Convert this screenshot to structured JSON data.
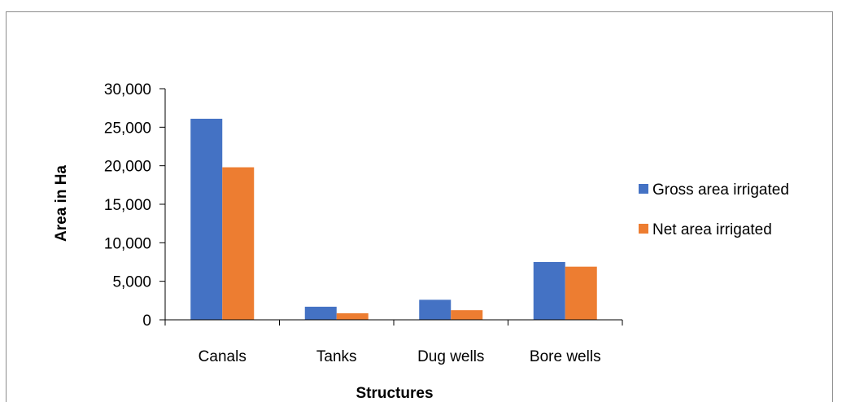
{
  "chart_data": {
    "type": "bar",
    "categories": [
      "Canals",
      "Tanks",
      "Dug wells",
      "Bore wells"
    ],
    "series": [
      {
        "name": "Gross area irrigated",
        "color": "#4472c4",
        "values": [
          26100,
          1700,
          2600,
          7500
        ]
      },
      {
        "name": "Net area irrigated",
        "color": "#ed7d31",
        "values": [
          19800,
          850,
          1250,
          6900
        ]
      }
    ],
    "xlabel": "Structures",
    "ylabel": "Area in Ha",
    "ylim": [
      0,
      30000
    ],
    "yticks": [
      0,
      5000,
      10000,
      15000,
      20000,
      25000,
      30000
    ],
    "ytick_labels": [
      "0",
      "5,000",
      "10,000",
      "15,000",
      "20,000",
      "25,000",
      "30,000"
    ],
    "grid": false,
    "legend_position": "right"
  }
}
